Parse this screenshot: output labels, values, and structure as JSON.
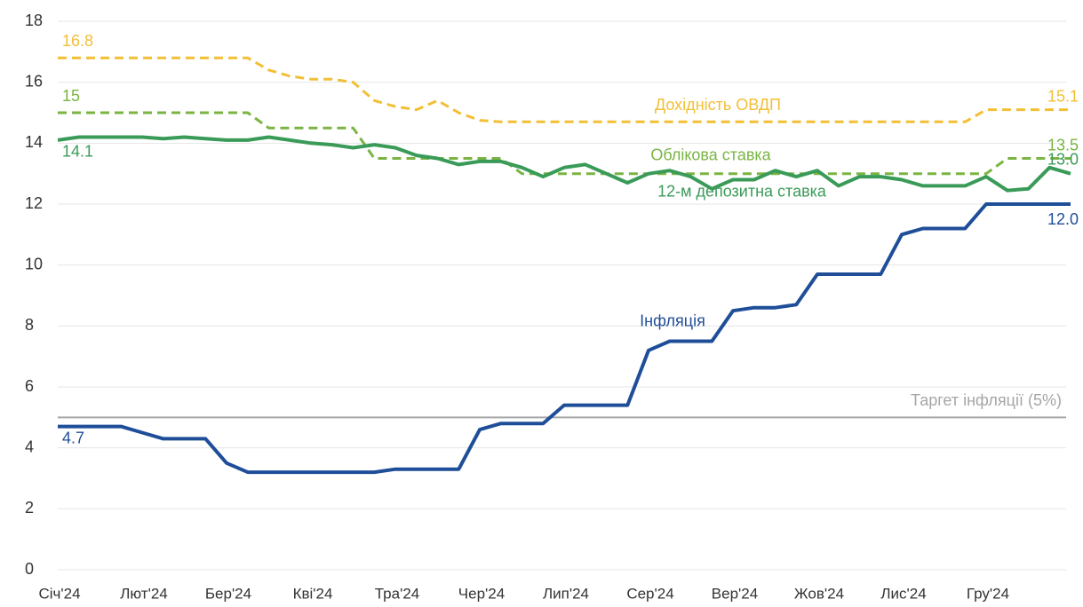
{
  "chart_data": {
    "type": "line",
    "categories": [
      "Січ'24",
      null,
      null,
      null,
      "Лют'24",
      null,
      null,
      null,
      "Бер'24",
      null,
      null,
      null,
      "Кві'24",
      null,
      null,
      null,
      "Тра'24",
      null,
      null,
      null,
      "Чер'24",
      null,
      null,
      null,
      "Лип'24",
      null,
      null,
      null,
      "Сер'24",
      null,
      null,
      null,
      "Вер'24",
      null,
      null,
      null,
      "Жов'24",
      null,
      null,
      null,
      "Лис'24",
      null,
      null,
      null,
      "Гру'24",
      null,
      null,
      null,
      null
    ],
    "series": [
      {
        "name": "Дохідність ОВДП",
        "color": "#f2bf35",
        "dashed": true,
        "values": [
          16.8,
          16.8,
          16.8,
          16.8,
          16.8,
          16.8,
          16.8,
          16.8,
          16.8,
          16.8,
          16.4,
          16.2,
          16.1,
          16.1,
          16.0,
          15.4,
          15.2,
          15.1,
          15.4,
          15.0,
          14.75,
          14.7,
          14.7,
          14.7,
          14.7,
          14.7,
          14.7,
          14.7,
          14.7,
          14.7,
          14.7,
          14.7,
          14.7,
          14.7,
          14.7,
          14.7,
          14.7,
          14.7,
          14.7,
          14.7,
          14.7,
          14.7,
          14.7,
          14.7,
          15.1,
          15.1,
          15.1,
          15.1,
          15.1
        ]
      },
      {
        "name": "Облікова ставка",
        "color": "#7ab442",
        "dashed": true,
        "values": [
          15,
          15,
          15,
          15,
          15,
          15,
          15,
          15,
          15,
          15,
          14.5,
          14.5,
          14.5,
          14.5,
          14.5,
          13.5,
          13.5,
          13.5,
          13.5,
          13.5,
          13.5,
          13.5,
          13,
          13,
          13,
          13,
          13,
          13,
          13,
          13,
          13,
          13,
          13,
          13,
          13,
          13,
          13,
          13,
          13,
          13,
          13,
          13,
          13,
          13,
          13,
          13.5,
          13.5,
          13.5,
          13.5
        ]
      },
      {
        "name": "12-м депозитна ставка",
        "color": "#3a9b58",
        "dashed": false,
        "values": [
          14.1,
          14.2,
          14.2,
          14.2,
          14.2,
          14.15,
          14.2,
          14.15,
          14.1,
          14.1,
          14.2,
          14.1,
          14.0,
          13.95,
          13.85,
          13.95,
          13.85,
          13.6,
          13.5,
          13.3,
          13.4,
          13.4,
          13.2,
          12.9,
          13.2,
          13.3,
          13.0,
          12.7,
          13.0,
          13.1,
          12.9,
          12.5,
          12.8,
          12.8,
          13.1,
          12.9,
          13.1,
          12.6,
          12.9,
          12.9,
          12.8,
          12.6,
          12.6,
          12.6,
          12.9,
          12.45,
          12.5,
          13.2,
          13
        ],
        "value_labels": [
          null,
          null,
          null,
          null,
          null,
          null,
          null,
          null,
          null,
          null,
          null,
          null,
          null,
          null,
          null,
          null,
          null,
          null,
          null,
          null,
          null,
          null,
          null,
          null,
          null,
          null,
          null,
          null,
          null,
          null,
          null,
          null,
          null,
          null,
          null,
          null,
          null,
          null,
          null,
          null,
          null,
          null,
          null,
          null,
          null,
          null,
          null,
          null,
          "13.0"
        ]
      },
      {
        "name": "Інфляція",
        "color": "#1f4e99",
        "dashed": false,
        "values": [
          4.7,
          4.7,
          4.7,
          4.7,
          4.5,
          4.3,
          4.3,
          4.3,
          3.5,
          3.2,
          3.2,
          3.2,
          3.2,
          3.2,
          3.2,
          3.2,
          3.3,
          3.3,
          3.3,
          3.3,
          4.6,
          4.8,
          4.8,
          4.8,
          5.4,
          5.4,
          5.4,
          5.4,
          7.2,
          7.5,
          7.5,
          7.5,
          8.5,
          8.6,
          8.6,
          8.7,
          9.7,
          9.7,
          9.7,
          9.7,
          11.0,
          11.2,
          11.2,
          11.2,
          12.0,
          12.0,
          12.0,
          12.0,
          12.0
        ],
        "value_labels": [
          null,
          null,
          null,
          null,
          null,
          null,
          null,
          null,
          null,
          null,
          null,
          null,
          null,
          null,
          null,
          null,
          null,
          null,
          null,
          null,
          null,
          null,
          null,
          null,
          null,
          null,
          null,
          null,
          null,
          null,
          null,
          null,
          null,
          null,
          null,
          null,
          null,
          null,
          null,
          null,
          null,
          null,
          null,
          null,
          null,
          null,
          null,
          null,
          "12.0"
        ]
      }
    ],
    "reference": {
      "value": 5,
      "label": "Таргет інфляції (5%)",
      "color": "#a6a6a6"
    },
    "ylim": [
      0,
      18
    ],
    "yticks": [
      0,
      2,
      4,
      6,
      8,
      10,
      12,
      14,
      16,
      18
    ],
    "grid": true
  }
}
